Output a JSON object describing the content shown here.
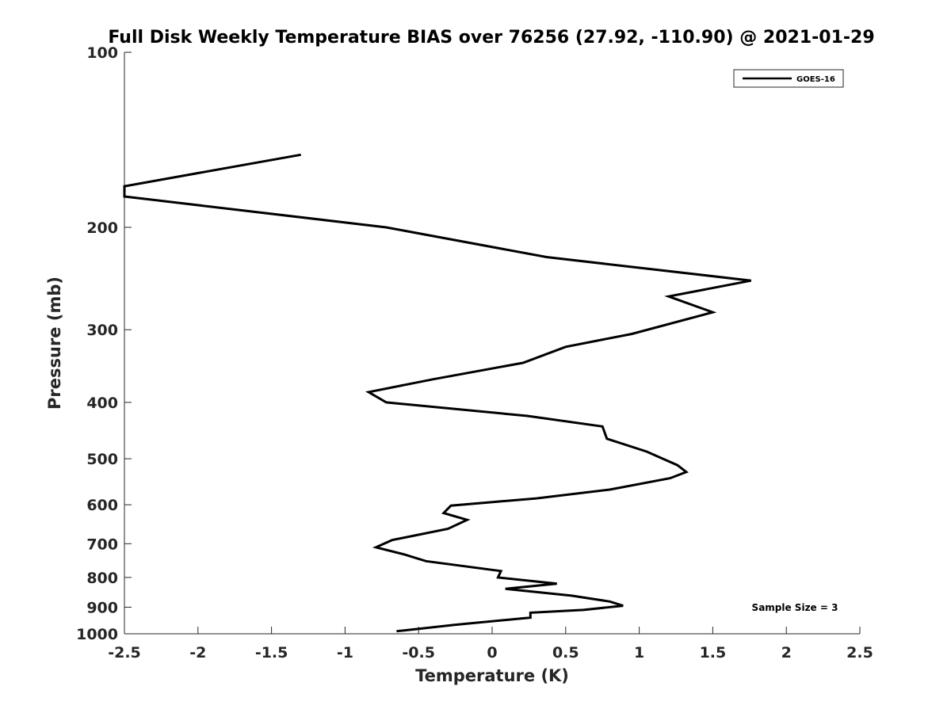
{
  "chart_data": {
    "type": "line",
    "title": "Full Disk Weekly Temperature BIAS over 76256 (27.92, -110.90) @ 2021-01-29",
    "xlabel": "Temperature (K)",
    "ylabel": "Pressure (mb)",
    "xlim": [
      -2.5,
      2.5
    ],
    "ylim": [
      100,
      1000
    ],
    "yscale": "log",
    "yreversed": true,
    "xticks": [
      -2.5,
      -2,
      -1.5,
      -1,
      -0.5,
      0,
      0.5,
      1,
      1.5,
      2,
      2.5
    ],
    "xtick_labels": [
      "-2.5",
      "-2",
      "-1.5",
      "-1",
      "-0.5",
      "0",
      "0.5",
      "1",
      "1.5",
      "2",
      "2.5"
    ],
    "yticks": [
      100,
      200,
      300,
      400,
      500,
      600,
      700,
      800,
      900,
      1000
    ],
    "ytick_labels": [
      "100",
      "200",
      "300",
      "400",
      "500",
      "600",
      "700",
      "800",
      "900",
      "1000"
    ],
    "grid": false,
    "legend_position": "top-right",
    "annotation": "Sample Size = 3",
    "series": [
      {
        "name": "GOES-16",
        "color": "#000000",
        "points": [
          [
            -1.3,
            150
          ],
          [
            -2.5,
            170
          ],
          [
            -2.5,
            177
          ],
          [
            -0.72,
            200
          ],
          [
            0.37,
            225
          ],
          [
            1.76,
            247
          ],
          [
            1.2,
            263
          ],
          [
            1.5,
            280
          ],
          [
            0.95,
            305
          ],
          [
            0.5,
            321
          ],
          [
            0.21,
            342
          ],
          [
            -0.4,
            365
          ],
          [
            -0.84,
            384
          ],
          [
            -0.72,
            400
          ],
          [
            0.24,
            422
          ],
          [
            0.75,
            440
          ],
          [
            0.78,
            462
          ],
          [
            1.05,
            486
          ],
          [
            1.26,
            513
          ],
          [
            1.32,
            527
          ],
          [
            1.21,
            540
          ],
          [
            0.8,
            565
          ],
          [
            0.3,
            585
          ],
          [
            -0.28,
            602
          ],
          [
            -0.33,
            620
          ],
          [
            -0.17,
            637
          ],
          [
            -0.3,
            660
          ],
          [
            -0.68,
            690
          ],
          [
            -0.79,
            710
          ],
          [
            -0.6,
            730
          ],
          [
            -0.45,
            750
          ],
          [
            0.06,
            780
          ],
          [
            0.04,
            800
          ],
          [
            0.44,
            820
          ],
          [
            0.09,
            837
          ],
          [
            0.54,
            860
          ],
          [
            0.8,
            880
          ],
          [
            0.89,
            895
          ],
          [
            0.62,
            910
          ],
          [
            0.26,
            920
          ],
          [
            0.26,
            938
          ],
          [
            -0.25,
            965
          ],
          [
            -0.65,
            990
          ]
        ]
      }
    ]
  }
}
